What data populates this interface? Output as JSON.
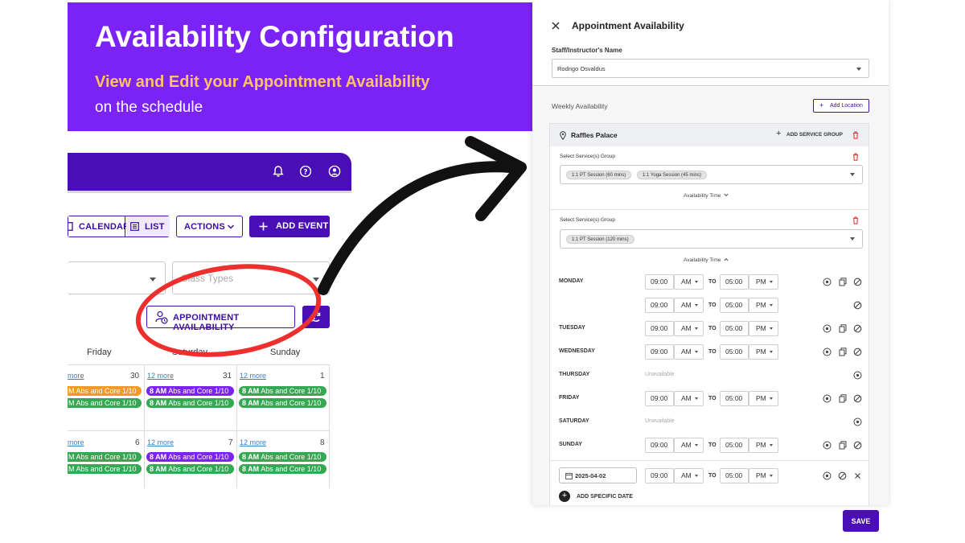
{
  "banner": {
    "title": "Availability Configuration",
    "subtitle": "View and Edit your Appointment Availability",
    "subtitle2": "on the schedule"
  },
  "app": {
    "toolbar": {
      "calendar": "CALENDAR",
      "list": "LIST",
      "actions": "ACTIONS",
      "add_event": "ADD EVENT"
    },
    "filter_placeholder": "Class Types",
    "appointment_btn": "APPOINTMENT AVAILABILITY",
    "days": [
      "Friday",
      "Saturday",
      "Sunday"
    ],
    "week1": {
      "more": [
        "more",
        "12 more",
        "12 more"
      ],
      "dates": [
        "30",
        "31",
        "1"
      ]
    },
    "week2": {
      "more": [
        "more",
        "12 more",
        "12 more"
      ],
      "dates": [
        "6",
        "7",
        "8"
      ]
    },
    "event_time": "8 AM",
    "event_text": "Abs and Core 1/10",
    "event_text_partial": "M Abs and Core 1/10"
  },
  "panel": {
    "title": "Appointment Availability",
    "staff_label": "Staff/Instructor's Name",
    "staff_value": "Rodrigo Osvaldus",
    "weekly_label": "Weekly Availability",
    "add_location": "Add Location",
    "location": "Raffles Palace",
    "add_service_group": "ADD SERVICE GROUP",
    "select_group_label": "Select Service(s) Group",
    "group1_chips": [
      "1:1 PT Session (60 mins)",
      "1:1 Yoga Session (45 mins)"
    ],
    "group2_chips": [
      "1:1 PT Session (120 mins)"
    ],
    "availability_time": "Availability Time",
    "to": "TO",
    "unavailable": "Unavailable",
    "days": {
      "monday": "MONDAY",
      "tuesday": "TUESDAY",
      "wednesday": "WEDNESDAY",
      "thursday": "THURSDAY",
      "friday": "FRIDAY",
      "saturday": "SATURDAY",
      "sunday": "SUNDAY"
    },
    "start_time": "09:00",
    "start_ampm": "AM",
    "end_time": "05:00",
    "end_ampm": "PM",
    "specific_date": "2025-04-02",
    "add_specific_date": "ADD SPECIFIC DATE",
    "save": "SAVE"
  },
  "colors": {
    "banner": "#7b22f5",
    "brand": "#4a0fb4",
    "highlight": "#ef2e2e",
    "event_green": "#34a853",
    "event_orange": "#f39a26"
  }
}
